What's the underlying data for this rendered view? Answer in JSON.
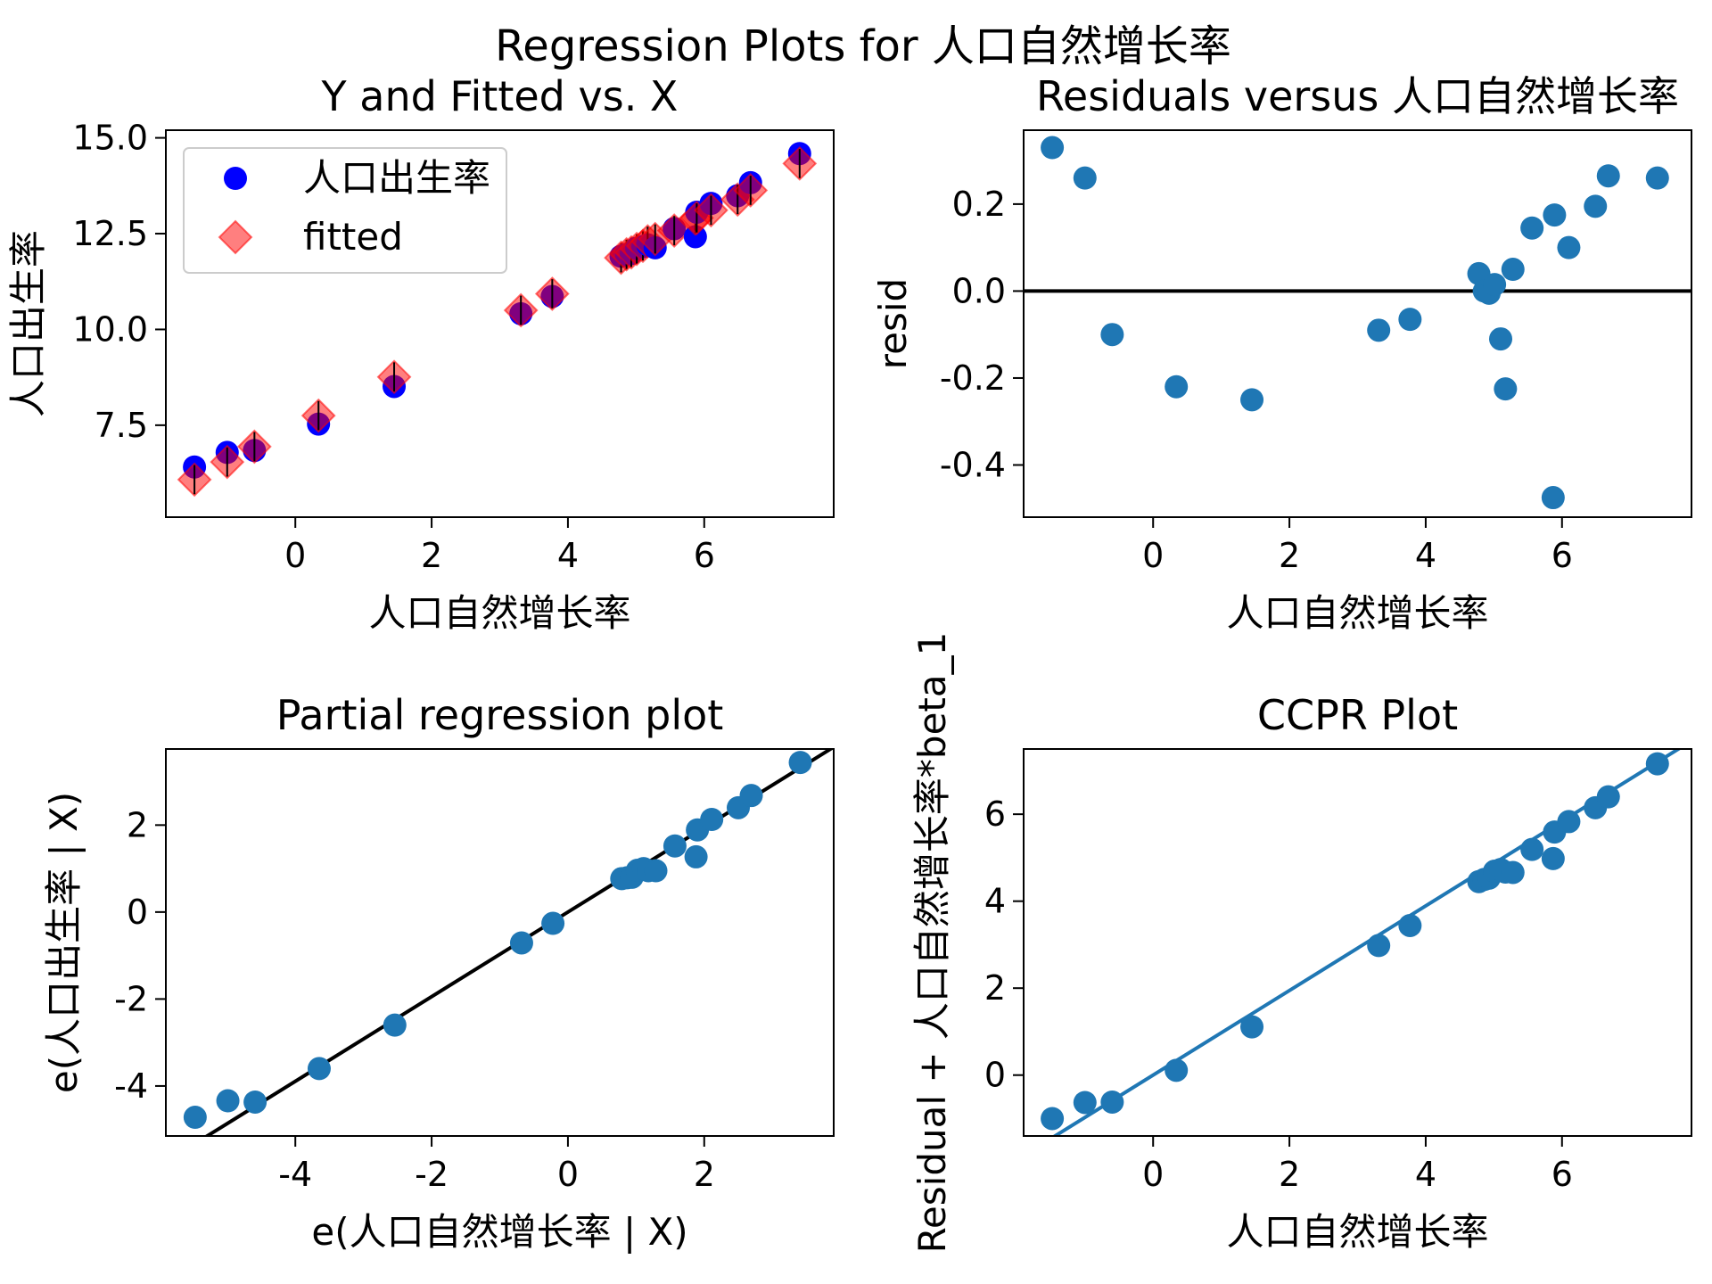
{
  "figure": {
    "title": "Regression Plots for 人口自然增长率"
  },
  "colors": {
    "blue": "#1f77b4",
    "pure_blue": "#0000ff",
    "red": "#ff0000",
    "black": "#000000"
  },
  "chart_data": [
    {
      "id": "yfit",
      "type": "scatter",
      "title": "Y and Fitted vs. X",
      "xlabel": "人口自然增长率",
      "ylabel": "人口出生率",
      "xlim": [
        -1.9,
        7.9
      ],
      "ylim": [
        5.1,
        15.2
      ],
      "xticks": [
        0,
        2,
        4,
        6
      ],
      "xtick_labels": [
        "0",
        "2",
        "4",
        "6"
      ],
      "yticks": [
        7.5,
        10.0,
        12.5,
        15.0
      ],
      "ytick_labels": [
        "7.5",
        "10.0",
        "12.5",
        "15.0"
      ],
      "legend": {
        "position": "top-left",
        "entries": [
          "人口出生率",
          "fitted"
        ]
      },
      "x": [
        -1.48,
        -1.0,
        -0.6,
        0.34,
        1.45,
        3.31,
        3.77,
        4.78,
        4.86,
        4.93,
        5.01,
        5.1,
        5.17,
        5.28,
        5.56,
        5.87,
        5.89,
        6.1,
        6.49,
        6.68,
        7.4
      ],
      "y": [
        6.41,
        6.79,
        6.84,
        7.53,
        8.51,
        10.41,
        10.86,
        11.91,
        11.96,
        11.98,
        12.12,
        12.16,
        12.21,
        12.13,
        12.63,
        12.42,
        13.06,
        13.29,
        13.49,
        13.83,
        14.59
      ],
      "fitted": [
        6.08,
        6.54,
        6.94,
        7.75,
        8.76,
        10.5,
        10.93,
        11.87,
        11.96,
        12.01,
        12.1,
        12.18,
        12.3,
        12.36,
        12.58,
        12.89,
        12.91,
        13.11,
        13.39,
        13.63,
        14.33
      ],
      "series": [
        {
          "name": "人口出生率",
          "marker": "circle",
          "color": "#0000ff"
        },
        {
          "name": "fitted",
          "marker": "diamond",
          "color": "#ff0000"
        }
      ]
    },
    {
      "id": "resid",
      "type": "scatter",
      "title": "Residuals versus 人口自然增长率",
      "xlabel": "人口自然增长率",
      "ylabel": "resid",
      "xlim": [
        -1.9,
        7.9
      ],
      "ylim": [
        -0.52,
        0.37
      ],
      "xticks": [
        0,
        2,
        4,
        6
      ],
      "xtick_labels": [
        "0",
        "2",
        "4",
        "6"
      ],
      "yticks": [
        -0.4,
        -0.2,
        0.0,
        0.2
      ],
      "ytick_labels": [
        "-0.4",
        "-0.2",
        "0.0",
        "0.2"
      ],
      "hline": 0,
      "x": [
        -1.48,
        -1.0,
        -0.6,
        0.34,
        1.45,
        3.31,
        3.77,
        4.78,
        4.86,
        4.93,
        5.01,
        5.1,
        5.17,
        5.28,
        5.56,
        5.87,
        5.89,
        6.1,
        6.49,
        6.68,
        7.4
      ],
      "y": [
        0.33,
        0.26,
        -0.1,
        -0.22,
        -0.25,
        -0.09,
        -0.065,
        0.04,
        0.0,
        -0.005,
        0.015,
        -0.11,
        -0.225,
        0.05,
        0.145,
        -0.475,
        0.175,
        0.1,
        0.195,
        0.265,
        0.26
      ]
    },
    {
      "id": "partial",
      "type": "scatter",
      "title": "Partial regression plot",
      "xlabel": "e(人口自然增长率 | X)",
      "ylabel": "e(人口出生率 | X)",
      "xlim": [
        -5.9,
        3.9
      ],
      "ylim": [
        -5.15,
        3.75
      ],
      "xticks": [
        -4,
        -2,
        0,
        2
      ],
      "xtick_labels": [
        "-4",
        "-2",
        "0",
        "2"
      ],
      "yticks": [
        -4,
        -2,
        0,
        2
      ],
      "ytick_labels": [
        "-4",
        "-2",
        "0",
        "2"
      ],
      "fit_line": {
        "slope": 0.973,
        "intercept": 0.0
      },
      "x": [
        -5.47,
        -4.99,
        -4.59,
        -3.65,
        -2.54,
        -0.68,
        -0.22,
        0.79,
        0.87,
        0.94,
        1.02,
        1.11,
        1.18,
        1.29,
        1.57,
        1.88,
        1.9,
        2.11,
        2.5,
        2.69,
        3.41
      ],
      "y": [
        -4.72,
        -4.34,
        -4.37,
        -3.6,
        -2.6,
        -0.71,
        -0.26,
        0.77,
        0.79,
        0.8,
        0.96,
        1.0,
        0.95,
        0.95,
        1.52,
        1.27,
        1.89,
        2.13,
        2.4,
        2.68,
        3.44
      ]
    },
    {
      "id": "ccpr",
      "type": "scatter",
      "title": "CCPR Plot",
      "xlabel": "人口自然增长率",
      "ylabel": "Residual + 人口自然增长率*beta_1",
      "xlim": [
        -1.9,
        7.9
      ],
      "ylim": [
        -1.4,
        7.5
      ],
      "xticks": [
        0,
        2,
        4,
        6
      ],
      "xtick_labels": [
        "0",
        "2",
        "4",
        "6"
      ],
      "yticks": [
        0,
        2,
        4,
        6
      ],
      "ytick_labels": [
        "0",
        "2",
        "4",
        "6"
      ],
      "fit_line": {
        "slope": 0.973,
        "intercept": 0.0
      },
      "x": [
        -1.48,
        -1.0,
        -0.6,
        0.34,
        1.45,
        3.31,
        3.77,
        4.78,
        4.86,
        4.93,
        5.01,
        5.1,
        5.17,
        5.28,
        5.56,
        5.87,
        5.89,
        6.1,
        6.49,
        6.68,
        7.4
      ],
      "y": [
        -1.0,
        -0.63,
        -0.62,
        0.11,
        1.11,
        2.98,
        3.44,
        4.45,
        4.5,
        4.53,
        4.69,
        4.73,
        4.67,
        4.66,
        5.19,
        4.98,
        5.59,
        5.83,
        6.15,
        6.4,
        7.16
      ]
    }
  ]
}
